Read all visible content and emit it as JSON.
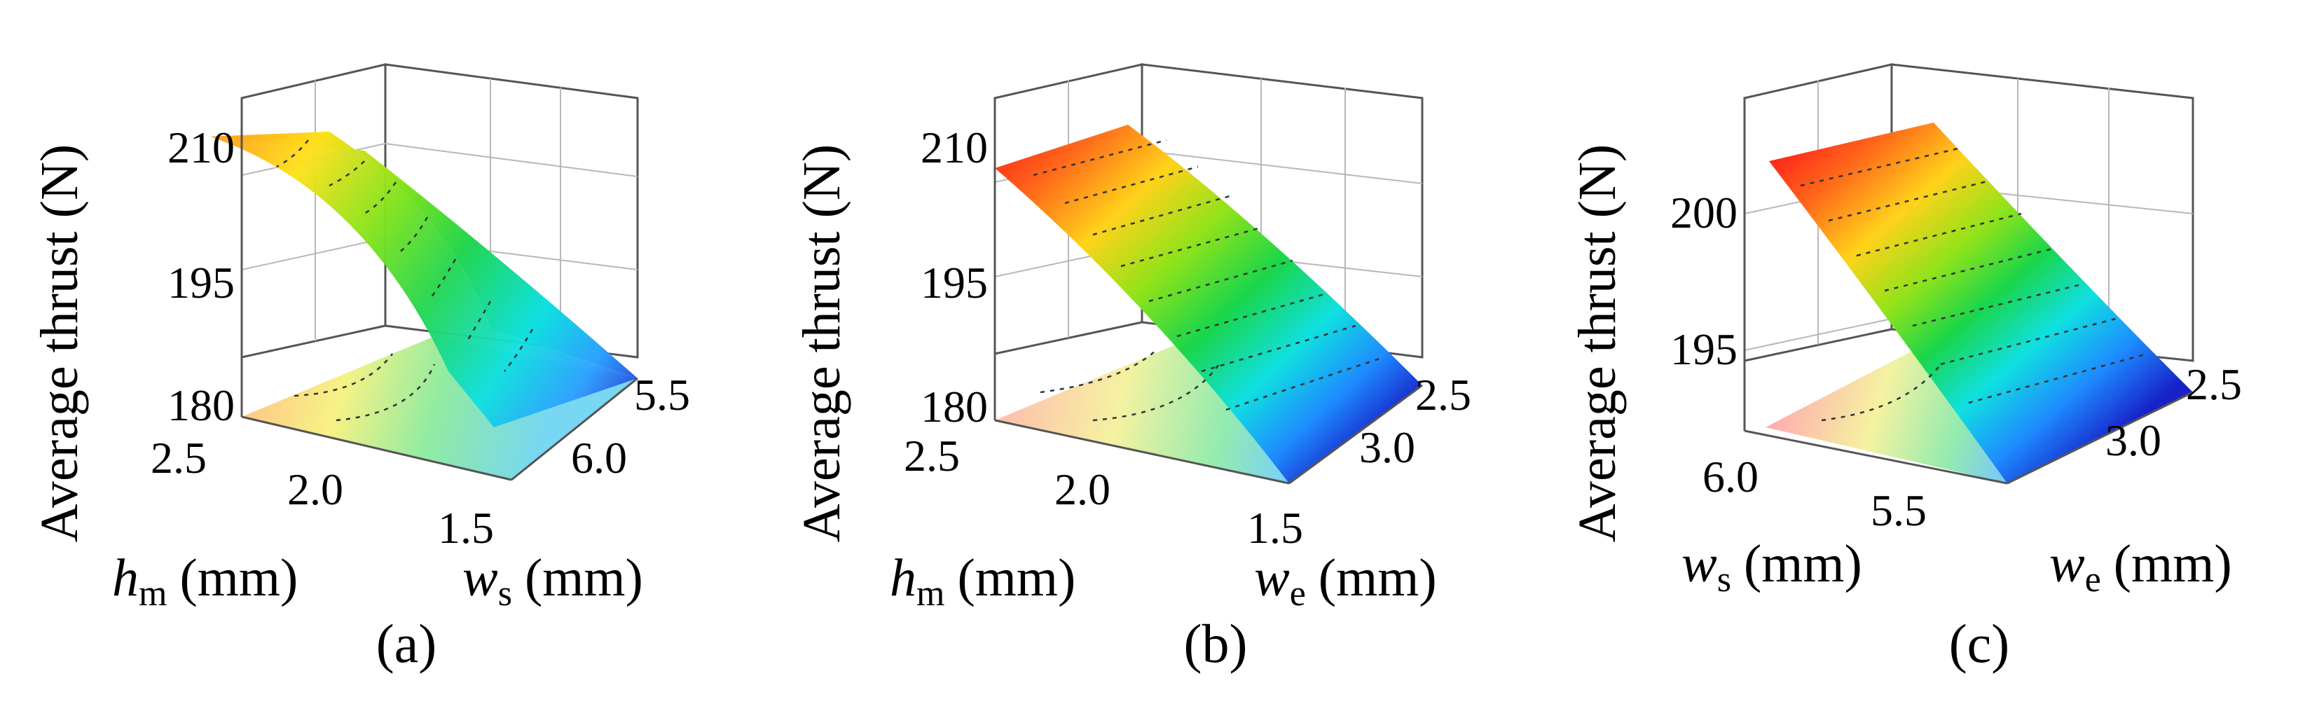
{
  "chart_data": [
    {
      "type": "surface",
      "panel": "(a)",
      "zlabel": "Average thrust (N)",
      "xlabel": {
        "symbol": "h",
        "subscript": "m",
        "unit": "(mm)"
      },
      "ylabel": {
        "symbol": "w",
        "subscript": "s",
        "unit": "(mm)"
      },
      "x_ticks": [
        "2.5",
        "2.0",
        "1.5"
      ],
      "y_ticks": [
        "6.0",
        "5.5"
      ],
      "z_ticks": [
        "210",
        "195",
        "180"
      ],
      "zlim": [
        180,
        213
      ],
      "corners": {
        "x_max_y_max": 210.5,
        "x_max_y_min": 209.5,
        "x_min_y_max": 182.5,
        "x_min_y_min": 182
      }
    },
    {
      "type": "surface",
      "panel": "(b)",
      "zlabel": "Average thrust (N)",
      "xlabel": {
        "symbol": "h",
        "subscript": "m",
        "unit": "(mm)"
      },
      "ylabel": {
        "symbol": "w",
        "subscript": "e",
        "unit": "(mm)"
      },
      "x_ticks": [
        "2.5",
        "2.0",
        "1.5"
      ],
      "y_ticks": [
        "3.0",
        "2.5"
      ],
      "z_ticks": [
        "210",
        "195",
        "180"
      ],
      "zlim": [
        180,
        213
      ],
      "corners": {
        "x_max_y_max": 209,
        "x_max_y_min": 209.5,
        "x_min_y_max": 184,
        "x_min_y_min": 184.5
      }
    },
    {
      "type": "surface",
      "panel": "(c)",
      "zlabel": "Average thrust (N)",
      "xlabel": {
        "symbol": "w",
        "subscript": "s",
        "unit": "(mm)"
      },
      "ylabel": {
        "symbol": "w",
        "subscript": "e",
        "unit": "(mm)"
      },
      "x_ticks": [
        "6.0",
        "5.5"
      ],
      "y_ticks": [
        "3.0",
        "2.5"
      ],
      "z_ticks": [
        "200",
        "195"
      ],
      "zlim": [
        191,
        205
      ],
      "corners": {
        "x_max_y_max": 202.5,
        "x_max_y_min": 202.5,
        "x_min_y_max": 192,
        "x_min_y_min": 192
      }
    }
  ]
}
